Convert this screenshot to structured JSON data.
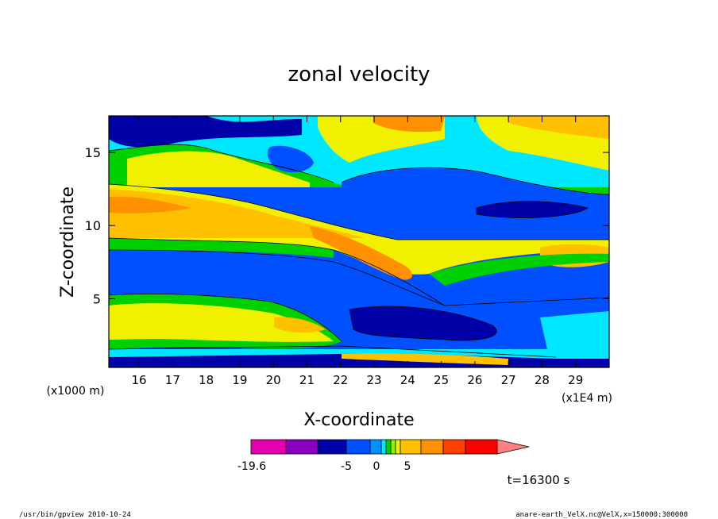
{
  "chart_data": {
    "type": "heatmap",
    "title": "zonal velocity",
    "xlabel": "X-coordinate",
    "ylabel": "Z-coordinate",
    "x_scale_label": "(x1E4 m)",
    "y_scale_label": "(x1000 m)",
    "x_ticks": [
      "16",
      "17",
      "18",
      "19",
      "20",
      "21",
      "22",
      "23",
      "24",
      "25",
      "26",
      "27",
      "28",
      "29"
    ],
    "y_ticks": [
      "5",
      "10",
      "15"
    ],
    "xlim": [
      15.1,
      30.0
    ],
    "ylim": [
      0.3,
      17.5
    ],
    "colorbar": {
      "labels": [
        "-19.6",
        "-5",
        "0",
        "5"
      ],
      "colors": [
        "#e800b0",
        "#8a00c0",
        "#0000a8",
        "#0050ff",
        "#0090ff",
        "#00e8ff",
        "#00d000",
        "#90f000",
        "#f0f000",
        "#ffc000",
        "#ff9000",
        "#ff4000",
        "#ff0000",
        "#ff8080"
      ]
    },
    "bands": [
      {
        "z": [
          0.3,
          0.9
        ],
        "level": "blue"
      },
      {
        "z": [
          0.9,
          2.0
        ],
        "level": "cyan-green"
      },
      {
        "z": [
          2.0,
          4.5
        ],
        "level": "yellow-orange"
      },
      {
        "z": [
          4.5,
          9.0
        ],
        "level": "blue"
      },
      {
        "z": [
          9.0,
          10.5
        ],
        "level": "yellow"
      },
      {
        "z": [
          10.5,
          13.0
        ],
        "level": "orange"
      },
      {
        "z": [
          13.0,
          17.5
        ],
        "level": "green-blue"
      }
    ],
    "annotation": "t=16300 s"
  },
  "footer": {
    "left": "/usr/bin/gpview   2010-10-24",
    "right": "anare-earth_VelX.nc@VelX,x=150000:300000"
  }
}
